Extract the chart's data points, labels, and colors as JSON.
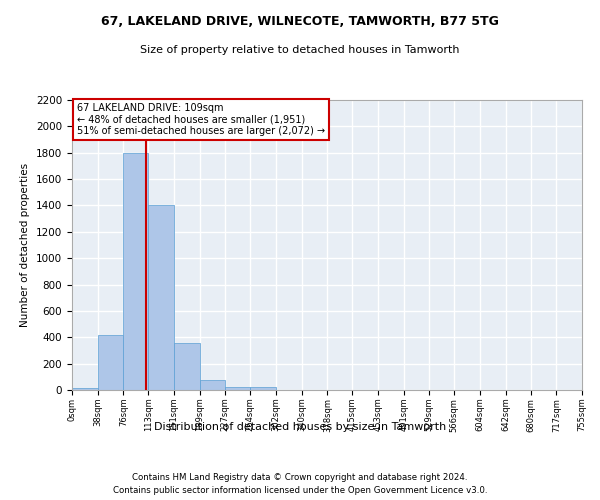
{
  "title1": "67, LAKELAND DRIVE, WILNECOTE, TAMWORTH, B77 5TG",
  "title2": "Size of property relative to detached houses in Tamworth",
  "xlabel": "Distribution of detached houses by size in Tamworth",
  "ylabel": "Number of detached properties",
  "footnote1": "Contains HM Land Registry data © Crown copyright and database right 2024.",
  "footnote2": "Contains public sector information licensed under the Open Government Licence v3.0.",
  "annotation_line1": "67 LAKELAND DRIVE: 109sqm",
  "annotation_line2": "← 48% of detached houses are smaller (1,951)",
  "annotation_line3": "51% of semi-detached houses are larger (2,072) →",
  "bar_edges": [
    0,
    38,
    76,
    113,
    151,
    189,
    227,
    264,
    302,
    340,
    378,
    415,
    453,
    491,
    529,
    566,
    604,
    642,
    680,
    717,
    755
  ],
  "bar_heights": [
    15,
    420,
    1800,
    1400,
    355,
    75,
    25,
    20,
    0,
    0,
    0,
    0,
    0,
    0,
    0,
    0,
    0,
    0,
    0,
    0
  ],
  "bar_color": "#aec6e8",
  "bar_edgecolor": "#5a9fd4",
  "property_line_x": 109,
  "ylim": [
    0,
    2200
  ],
  "ytick_step": 200,
  "bg_color": "#e8eef5",
  "grid_color": "#ffffff",
  "annotation_box_color": "#ffffff",
  "annotation_box_edgecolor": "#cc0000",
  "red_line_color": "#cc0000"
}
